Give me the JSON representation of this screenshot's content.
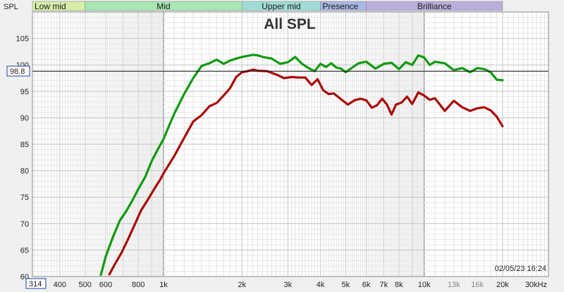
{
  "chart_data": {
    "type": "line",
    "title": "All SPL",
    "ylabel": "SPL",
    "xunit": "Hz",
    "xscale": "log",
    "xlim": [
      314,
      30000
    ],
    "ylim": [
      60,
      110
    ],
    "grid": true,
    "cursor": {
      "y": 98.8,
      "label": "98.8",
      "x_label": "314"
    },
    "timestamp": "02/05/23 16:24",
    "bands": [
      {
        "name": "Low mid",
        "from": 314,
        "to": 500,
        "color": "#d6eea8"
      },
      {
        "name": "Mid",
        "from": 500,
        "to": 2000,
        "color": "#a8e6b4"
      },
      {
        "name": "Upper mid",
        "from": 2000,
        "to": 4000,
        "color": "#9fdcd6"
      },
      {
        "name": "Presence",
        "from": 4000,
        "to": 6000,
        "color": "#a9b8e4"
      },
      {
        "name": "Brilliance",
        "from": 6000,
        "to": 20000,
        "color": "#bcaedc"
      }
    ],
    "y_ticks": [
      {
        "v": 105,
        "label": "105"
      },
      {
        "v": 100,
        "label": "100"
      },
      {
        "v": 95,
        "label": "95"
      },
      {
        "v": 90,
        "label": "90"
      },
      {
        "v": 85,
        "label": "85"
      },
      {
        "v": 80,
        "label": "80"
      },
      {
        "v": 75,
        "label": "75"
      },
      {
        "v": 70,
        "label": "70"
      },
      {
        "v": 65,
        "label": "65"
      },
      {
        "v": 60,
        "label": "60"
      }
    ],
    "x_ticks": [
      {
        "v": 400,
        "label": "400"
      },
      {
        "v": 500,
        "label": "500"
      },
      {
        "v": 600,
        "label": "600"
      },
      {
        "v": 800,
        "label": "800"
      },
      {
        "v": 1000,
        "label": "1k"
      },
      {
        "v": 2000,
        "label": "2k"
      },
      {
        "v": 3000,
        "label": "3k"
      },
      {
        "v": 4000,
        "label": "4k"
      },
      {
        "v": 5000,
        "label": "5k"
      },
      {
        "v": 6000,
        "label": "6k"
      },
      {
        "v": 7000,
        "label": "7k"
      },
      {
        "v": 8000,
        "label": "8k"
      },
      {
        "v": 10000,
        "label": "10k"
      },
      {
        "v": 13000,
        "label": "13k",
        "muted": true
      },
      {
        "v": 16000,
        "label": "16k",
        "muted": true
      },
      {
        "v": 20000,
        "label": "20k"
      },
      {
        "v": 30000,
        "label": "30kHz"
      }
    ],
    "series": [
      {
        "color": "#0f9a0f",
        "x": [
          575,
          600,
          640,
          680,
          720,
          760,
          800,
          850,
          900,
          950,
          1000,
          1050,
          1100,
          1200,
          1300,
          1400,
          1500,
          1600,
          1700,
          1800,
          1900,
          2000,
          2100,
          2200,
          2300,
          2400,
          2600,
          2800,
          3000,
          3200,
          3400,
          3600,
          3800,
          4000,
          4200,
          4400,
          4600,
          4800,
          5000,
          5300,
          5600,
          6000,
          6500,
          7000,
          7500,
          8000,
          8500,
          9000,
          9500,
          10000,
          10500,
          11000,
          12000,
          13000,
          14000,
          15000,
          16000,
          17000,
          18000,
          19000,
          20000
        ],
        "y": [
          60.3,
          63.8,
          67.5,
          70.6,
          72.4,
          74.4,
          76.5,
          78.8,
          81.8,
          84.0,
          86.0,
          88.5,
          90.8,
          94.5,
          97.5,
          99.8,
          100.3,
          101.0,
          100.2,
          100.8,
          101.2,
          101.5,
          101.7,
          101.9,
          101.8,
          101.5,
          101.2,
          100.2,
          100.5,
          101.5,
          100.2,
          99.4,
          98.8,
          100.2,
          99.6,
          100.3,
          99.5,
          99.3,
          98.6,
          99.5,
          100.3,
          100.6,
          99.3,
          100.2,
          100.4,
          99.2,
          100.5,
          100.0,
          101.8,
          101.4,
          100.0,
          100.6,
          100.3,
          99.0,
          99.4,
          98.6,
          99.4,
          99.2,
          98.6,
          97.2,
          97.1
        ]
      },
      {
        "color": "#aa0a0a",
        "x": [
          620,
          650,
          690,
          730,
          770,
          820,
          870,
          920,
          970,
          1000,
          1050,
          1100,
          1200,
          1300,
          1400,
          1500,
          1600,
          1700,
          1800,
          1900,
          2000,
          2100,
          2200,
          2300,
          2500,
          2700,
          2900,
          3100,
          3300,
          3500,
          3700,
          3900,
          4100,
          4300,
          4500,
          4800,
          5100,
          5400,
          5700,
          6000,
          6300,
          6600,
          6900,
          7200,
          7500,
          7800,
          8200,
          8600,
          9000,
          9500,
          10000,
          10500,
          11000,
          12000,
          13000,
          14000,
          15000,
          16000,
          17000,
          18000,
          19000,
          20000
        ],
        "y": [
          60.4,
          62.3,
          64.5,
          67.0,
          69.5,
          72.5,
          74.5,
          76.5,
          78.3,
          79.5,
          81.2,
          82.8,
          86.2,
          89.3,
          90.5,
          92.2,
          92.8,
          94.2,
          95.6,
          97.7,
          98.6,
          98.8,
          99.1,
          98.9,
          98.8,
          98.2,
          97.5,
          97.7,
          97.6,
          97.6,
          96.2,
          97.3,
          95.2,
          94.5,
          94.6,
          93.5,
          92.5,
          93.3,
          93.6,
          93.3,
          91.9,
          92.4,
          93.6,
          92.5,
          90.6,
          92.5,
          92.9,
          94.0,
          92.6,
          94.8,
          94.2,
          93.4,
          93.7,
          91.3,
          93.2,
          92.0,
          91.3,
          91.8,
          92.0,
          91.4,
          90.2,
          88.4
        ]
      }
    ]
  }
}
